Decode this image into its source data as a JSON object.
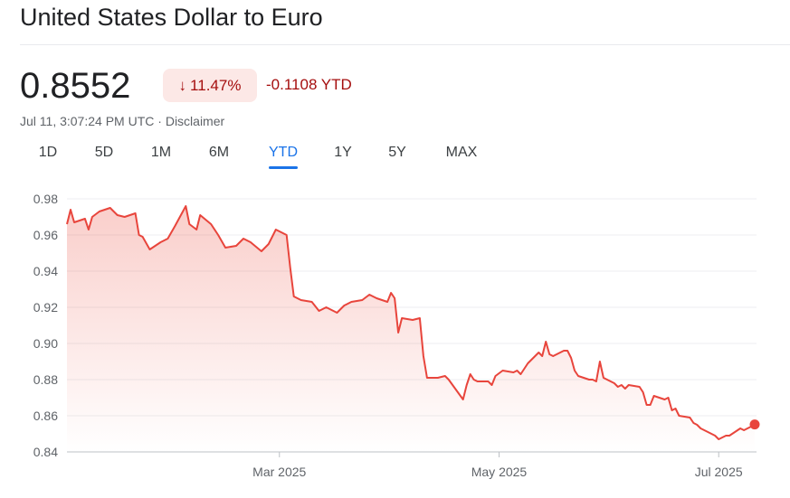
{
  "header": {
    "title": "United States Dollar to Euro",
    "price": "0.8552",
    "change_arrow": "↓",
    "change_percent": "11.47%",
    "change_abs": "-0.1108 YTD",
    "timestamp": "Jul 11, 3:07:24 PM UTC",
    "separator": " · ",
    "disclaimer": "Disclaimer"
  },
  "colors": {
    "line": "#e8453c",
    "negative_text": "#a50e0e",
    "negative_bg": "#fce8e6",
    "accent": "#1a73e8"
  },
  "tabs": [
    {
      "label": "1D"
    },
    {
      "label": "5D"
    },
    {
      "label": "1M"
    },
    {
      "label": "6M"
    },
    {
      "label": "YTD",
      "active": true
    },
    {
      "label": "1Y"
    },
    {
      "label": "5Y"
    },
    {
      "label": "MAX"
    }
  ],
  "chart_data": {
    "type": "area",
    "x_label_ticks": [
      "Mar 2025",
      "May 2025",
      "Jul 2025"
    ],
    "y_ticks": [
      "0.98",
      "0.96",
      "0.94",
      "0.92",
      "0.90",
      "0.88",
      "0.86",
      "0.84"
    ],
    "ylim": [
      0.84,
      0.98
    ],
    "xlim": [
      "2025-01-01",
      "2025-07-11"
    ],
    "grid": true,
    "series": [
      {
        "values": [
          [
            "2025-01-01",
            0.966
          ],
          [
            "2025-01-02",
            0.974
          ],
          [
            "2025-01-03",
            0.967
          ],
          [
            "2025-01-06",
            0.969
          ],
          [
            "2025-01-07",
            0.963
          ],
          [
            "2025-01-08",
            0.97
          ],
          [
            "2025-01-10",
            0.973
          ],
          [
            "2025-01-13",
            0.975
          ],
          [
            "2025-01-15",
            0.971
          ],
          [
            "2025-01-17",
            0.97
          ],
          [
            "2025-01-20",
            0.972
          ],
          [
            "2025-01-21",
            0.96
          ],
          [
            "2025-01-22",
            0.959
          ],
          [
            "2025-01-24",
            0.952
          ],
          [
            "2025-01-27",
            0.956
          ],
          [
            "2025-01-29",
            0.958
          ],
          [
            "2025-01-31",
            0.965
          ],
          [
            "2025-02-03",
            0.976
          ],
          [
            "2025-02-04",
            0.966
          ],
          [
            "2025-02-06",
            0.963
          ],
          [
            "2025-02-07",
            0.971
          ],
          [
            "2025-02-10",
            0.966
          ],
          [
            "2025-02-12",
            0.96
          ],
          [
            "2025-02-14",
            0.953
          ],
          [
            "2025-02-17",
            0.954
          ],
          [
            "2025-02-19",
            0.958
          ],
          [
            "2025-02-21",
            0.956
          ],
          [
            "2025-02-24",
            0.951
          ],
          [
            "2025-02-26",
            0.955
          ],
          [
            "2025-02-28",
            0.963
          ],
          [
            "2025-03-03",
            0.96
          ],
          [
            "2025-03-04",
            0.942
          ],
          [
            "2025-03-05",
            0.926
          ],
          [
            "2025-03-07",
            0.924
          ],
          [
            "2025-03-10",
            0.923
          ],
          [
            "2025-03-12",
            0.918
          ],
          [
            "2025-03-14",
            0.92
          ],
          [
            "2025-03-17",
            0.917
          ],
          [
            "2025-03-19",
            0.921
          ],
          [
            "2025-03-21",
            0.923
          ],
          [
            "2025-03-24",
            0.924
          ],
          [
            "2025-03-26",
            0.927
          ],
          [
            "2025-03-28",
            0.925
          ],
          [
            "2025-03-31",
            0.923
          ],
          [
            "2025-04-01",
            0.928
          ],
          [
            "2025-04-02",
            0.925
          ],
          [
            "2025-04-03",
            0.906
          ],
          [
            "2025-04-04",
            0.914
          ],
          [
            "2025-04-07",
            0.913
          ],
          [
            "2025-04-09",
            0.914
          ],
          [
            "2025-04-10",
            0.893
          ],
          [
            "2025-04-11",
            0.881
          ],
          [
            "2025-04-14",
            0.881
          ],
          [
            "2025-04-16",
            0.882
          ],
          [
            "2025-04-17",
            0.88
          ],
          [
            "2025-04-21",
            0.869
          ],
          [
            "2025-04-22",
            0.877
          ],
          [
            "2025-04-23",
            0.883
          ],
          [
            "2025-04-24",
            0.88
          ],
          [
            "2025-04-25",
            0.879
          ],
          [
            "2025-04-28",
            0.879
          ],
          [
            "2025-04-29",
            0.877
          ],
          [
            "2025-04-30",
            0.882
          ],
          [
            "2025-05-02",
            0.885
          ],
          [
            "2025-05-05",
            0.884
          ],
          [
            "2025-05-06",
            0.885
          ],
          [
            "2025-05-07",
            0.883
          ],
          [
            "2025-05-09",
            0.889
          ],
          [
            "2025-05-12",
            0.895
          ],
          [
            "2025-05-13",
            0.893
          ],
          [
            "2025-05-14",
            0.901
          ],
          [
            "2025-05-15",
            0.894
          ],
          [
            "2025-05-16",
            0.893
          ],
          [
            "2025-05-19",
            0.896
          ],
          [
            "2025-05-20",
            0.896
          ],
          [
            "2025-05-21",
            0.892
          ],
          [
            "2025-05-22",
            0.885
          ],
          [
            "2025-05-23",
            0.882
          ],
          [
            "2025-05-26",
            0.88
          ],
          [
            "2025-05-27",
            0.88
          ],
          [
            "2025-05-28",
            0.879
          ],
          [
            "2025-05-29",
            0.89
          ],
          [
            "2025-05-30",
            0.881
          ],
          [
            "2025-06-02",
            0.878
          ],
          [
            "2025-06-03",
            0.876
          ],
          [
            "2025-06-04",
            0.877
          ],
          [
            "2025-06-05",
            0.875
          ],
          [
            "2025-06-06",
            0.877
          ],
          [
            "2025-06-09",
            0.876
          ],
          [
            "2025-06-10",
            0.873
          ],
          [
            "2025-06-11",
            0.866
          ],
          [
            "2025-06-12",
            0.866
          ],
          [
            "2025-06-13",
            0.871
          ],
          [
            "2025-06-16",
            0.869
          ],
          [
            "2025-06-17",
            0.87
          ],
          [
            "2025-06-18",
            0.863
          ],
          [
            "2025-06-19",
            0.864
          ],
          [
            "2025-06-20",
            0.86
          ],
          [
            "2025-06-23",
            0.859
          ],
          [
            "2025-06-24",
            0.856
          ],
          [
            "2025-06-25",
            0.855
          ],
          [
            "2025-06-26",
            0.853
          ],
          [
            "2025-06-27",
            0.852
          ],
          [
            "2025-06-30",
            0.849
          ],
          [
            "2025-07-01",
            0.847
          ],
          [
            "2025-07-02",
            0.848
          ],
          [
            "2025-07-03",
            0.849
          ],
          [
            "2025-07-04",
            0.849
          ],
          [
            "2025-07-07",
            0.853
          ],
          [
            "2025-07-08",
            0.852
          ],
          [
            "2025-07-09",
            0.853
          ],
          [
            "2025-07-10",
            0.854
          ],
          [
            "2025-07-11",
            0.8552
          ]
        ]
      }
    ]
  }
}
